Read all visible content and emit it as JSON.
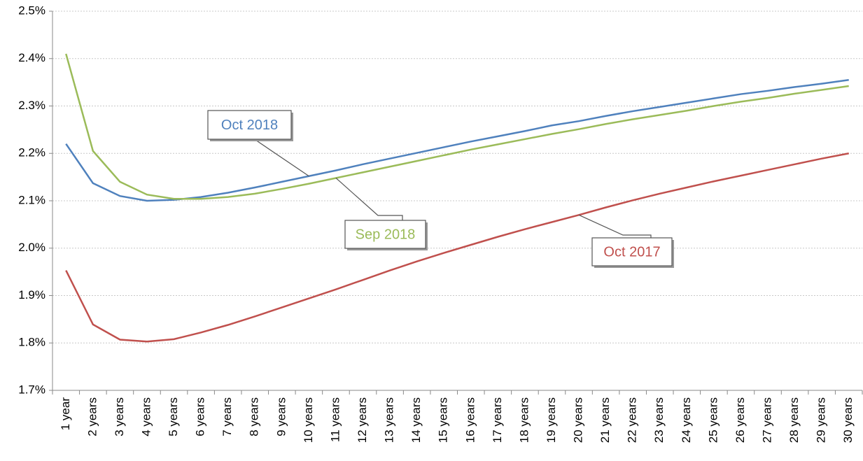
{
  "chart_data": {
    "type": "line",
    "categories": [
      "1 year",
      "2 years",
      "3 years",
      "4 years",
      "5 years",
      "6 years",
      "7 years",
      "8 years",
      "9 years",
      "10 years",
      "11 years",
      "12 years",
      "13 years",
      "14 years",
      "15 years",
      "16 years",
      "17 years",
      "18 years",
      "19 years",
      "20 years",
      "21 years",
      "22 years",
      "23 years",
      "24 years",
      "25 years",
      "26 years",
      "27 years",
      "28 years",
      "29 years",
      "30 years"
    ],
    "series": [
      {
        "name": "Oct 2018",
        "color": "#4f81bd",
        "values": [
          2.22,
          2.137,
          2.11,
          2.1,
          2.102,
          2.108,
          2.117,
          2.128,
          2.14,
          2.152,
          2.164,
          2.177,
          2.189,
          2.201,
          2.213,
          2.225,
          2.236,
          2.247,
          2.259,
          2.268,
          2.279,
          2.289,
          2.298,
          2.307,
          2.316,
          2.325,
          2.332,
          2.34,
          2.347,
          2.355
        ]
      },
      {
        "name": "Sep 2018",
        "color": "#9bbb59",
        "values": [
          2.41,
          2.205,
          2.14,
          2.113,
          2.104,
          2.104,
          2.108,
          2.115,
          2.125,
          2.136,
          2.148,
          2.16,
          2.172,
          2.184,
          2.196,
          2.208,
          2.219,
          2.23,
          2.241,
          2.251,
          2.262,
          2.272,
          2.281,
          2.29,
          2.3,
          2.309,
          2.317,
          2.326,
          2.334,
          2.342
        ]
      },
      {
        "name": "Oct 2017",
        "color": "#c0504d",
        "values": [
          1.953,
          1.839,
          1.807,
          1.803,
          1.808,
          1.822,
          1.838,
          1.856,
          1.875,
          1.894,
          1.913,
          1.933,
          1.953,
          1.972,
          1.99,
          2.007,
          2.024,
          2.04,
          2.055,
          2.07,
          2.086,
          2.101,
          2.115,
          2.128,
          2.141,
          2.153,
          2.165,
          2.177,
          2.189,
          2.2
        ]
      }
    ],
    "ylim": [
      1.7,
      2.5
    ],
    "yticks": [
      {
        "value": 1.7,
        "label": "1.7%"
      },
      {
        "value": 1.8,
        "label": "1.8%"
      },
      {
        "value": 1.9,
        "label": "1.9%"
      },
      {
        "value": 2.0,
        "label": "2.0%"
      },
      {
        "value": 2.1,
        "label": "2.1%"
      },
      {
        "value": 2.2,
        "label": "2.2%"
      },
      {
        "value": 2.3,
        "label": "2.3%"
      },
      {
        "value": 2.4,
        "label": "2.4%"
      },
      {
        "value": 2.5,
        "label": "2.5%"
      }
    ],
    "grid": true
  }
}
